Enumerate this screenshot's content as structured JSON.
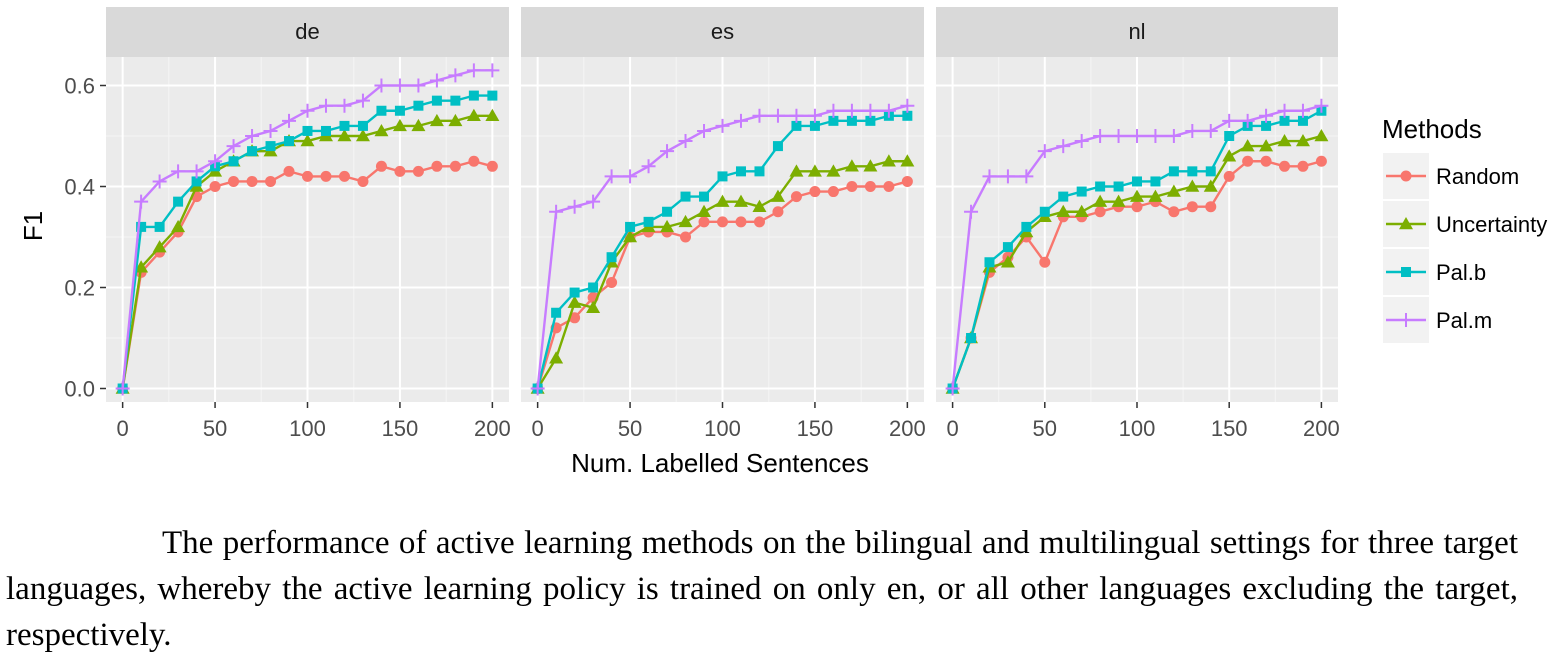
{
  "chart_data": {
    "type": "line",
    "facet_labels": [
      "de",
      "es",
      "nl"
    ],
    "xlabel": "Num. Labelled Sentences",
    "ylabel": "F1",
    "xlim": [
      0,
      200
    ],
    "ylim": [
      0,
      0.6
    ],
    "x_ticks": [
      "0",
      "50",
      "100",
      "150",
      "200"
    ],
    "y_ticks": [
      "0.0",
      "0.2",
      "0.4",
      "0.6"
    ],
    "grid": true,
    "legend": {
      "title": "Methods",
      "position": "right",
      "entries": [
        "Random",
        "Uncertainty",
        "Pal.b",
        "Pal.m"
      ]
    },
    "x": [
      0,
      10,
      20,
      30,
      40,
      50,
      60,
      70,
      80,
      90,
      100,
      110,
      120,
      130,
      140,
      150,
      160,
      170,
      180,
      190,
      200
    ],
    "panels": [
      {
        "facet": "de",
        "series": [
          {
            "name": "Random",
            "color": "#F8766D",
            "marker": "circle",
            "values": [
              0.0,
              0.23,
              0.27,
              0.31,
              0.38,
              0.4,
              0.41,
              0.41,
              0.41,
              0.43,
              0.42,
              0.42,
              0.42,
              0.41,
              0.44,
              0.43,
              0.43,
              0.44,
              0.44,
              0.45,
              0.44
            ]
          },
          {
            "name": "Uncertainty",
            "color": "#7CAE00",
            "marker": "triangle",
            "values": [
              0.0,
              0.24,
              0.28,
              0.32,
              0.4,
              0.43,
              0.45,
              0.47,
              0.47,
              0.49,
              0.49,
              0.5,
              0.5,
              0.5,
              0.51,
              0.52,
              0.52,
              0.53,
              0.53,
              0.54,
              0.54
            ]
          },
          {
            "name": "Pal.b",
            "color": "#00BFC4",
            "marker": "square",
            "values": [
              0.0,
              0.32,
              0.32,
              0.37,
              0.41,
              0.44,
              0.45,
              0.47,
              0.48,
              0.49,
              0.51,
              0.51,
              0.52,
              0.52,
              0.55,
              0.55,
              0.56,
              0.57,
              0.57,
              0.58,
              0.58
            ]
          },
          {
            "name": "Pal.m",
            "color": "#C77CFF",
            "marker": "plus",
            "values": [
              0.0,
              0.37,
              0.41,
              0.43,
              0.43,
              0.45,
              0.48,
              0.5,
              0.51,
              0.53,
              0.55,
              0.56,
              0.56,
              0.57,
              0.6,
              0.6,
              0.6,
              0.61,
              0.62,
              0.63,
              0.63
            ]
          }
        ]
      },
      {
        "facet": "es",
        "series": [
          {
            "name": "Random",
            "color": "#F8766D",
            "marker": "circle",
            "values": [
              0.0,
              0.12,
              0.14,
              0.18,
              0.21,
              0.3,
              0.31,
              0.31,
              0.3,
              0.33,
              0.33,
              0.33,
              0.33,
              0.35,
              0.38,
              0.39,
              0.39,
              0.4,
              0.4,
              0.4,
              0.41
            ]
          },
          {
            "name": "Uncertainty",
            "color": "#7CAE00",
            "marker": "triangle",
            "values": [
              0.0,
              0.06,
              0.17,
              0.16,
              0.25,
              0.3,
              0.32,
              0.32,
              0.33,
              0.35,
              0.37,
              0.37,
              0.36,
              0.38,
              0.43,
              0.43,
              0.43,
              0.44,
              0.44,
              0.45,
              0.45
            ]
          },
          {
            "name": "Pal.b",
            "color": "#00BFC4",
            "marker": "square",
            "values": [
              0.0,
              0.15,
              0.19,
              0.2,
              0.26,
              0.32,
              0.33,
              0.35,
              0.38,
              0.38,
              0.42,
              0.43,
              0.43,
              0.48,
              0.52,
              0.52,
              0.53,
              0.53,
              0.53,
              0.54,
              0.54
            ]
          },
          {
            "name": "Pal.m",
            "color": "#C77CFF",
            "marker": "plus",
            "values": [
              0.0,
              0.35,
              0.36,
              0.37,
              0.42,
              0.42,
              0.44,
              0.47,
              0.49,
              0.51,
              0.52,
              0.53,
              0.54,
              0.54,
              0.54,
              0.54,
              0.55,
              0.55,
              0.55,
              0.55,
              0.56
            ]
          }
        ]
      },
      {
        "facet": "nl",
        "series": [
          {
            "name": "Random",
            "color": "#F8766D",
            "marker": "circle",
            "values": [
              0.0,
              0.1,
              0.23,
              0.26,
              0.3,
              0.25,
              0.34,
              0.34,
              0.35,
              0.36,
              0.36,
              0.37,
              0.35,
              0.36,
              0.36,
              0.42,
              0.45,
              0.45,
              0.44,
              0.44,
              0.45
            ]
          },
          {
            "name": "Uncertainty",
            "color": "#7CAE00",
            "marker": "triangle",
            "values": [
              0.0,
              0.1,
              0.24,
              0.25,
              0.31,
              0.34,
              0.35,
              0.35,
              0.37,
              0.37,
              0.38,
              0.38,
              0.39,
              0.4,
              0.4,
              0.46,
              0.48,
              0.48,
              0.49,
              0.49,
              0.5
            ]
          },
          {
            "name": "Pal.b",
            "color": "#00BFC4",
            "marker": "square",
            "values": [
              0.0,
              0.1,
              0.25,
              0.28,
              0.32,
              0.35,
              0.38,
              0.39,
              0.4,
              0.4,
              0.41,
              0.41,
              0.43,
              0.43,
              0.43,
              0.5,
              0.52,
              0.52,
              0.53,
              0.53,
              0.55
            ]
          },
          {
            "name": "Pal.m",
            "color": "#C77CFF",
            "marker": "plus",
            "values": [
              0.0,
              0.35,
              0.42,
              0.42,
              0.42,
              0.47,
              0.48,
              0.49,
              0.5,
              0.5,
              0.5,
              0.5,
              0.5,
              0.51,
              0.51,
              0.53,
              0.53,
              0.54,
              0.55,
              0.55,
              0.56
            ]
          }
        ]
      }
    ]
  },
  "caption": {
    "text": "The performance of active learning methods on the bilingual and multilingual settings for three target languages, whereby the active learning policy is trained on only en, or all other languages excluding the target, respectively."
  }
}
